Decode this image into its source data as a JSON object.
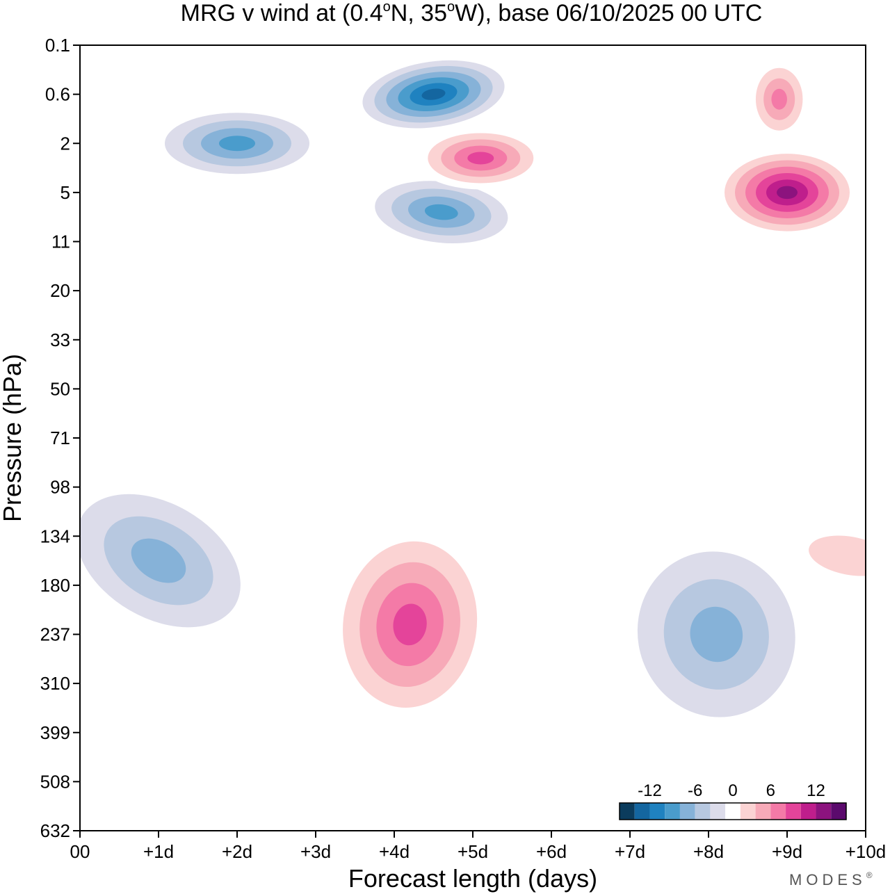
{
  "chart_data": {
    "type": "heatmap",
    "title": "MRG v wind at (0.4°N, 35°W),  base 06/10/2025  00 UTC",
    "title_parts": {
      "prefix": "MRG v wind at (0.4",
      "lat_unit": "o",
      "lat_suffix": "N, 35",
      "lon_unit": "o",
      "lon_suffix": "W),  base 06/10/2025  00 UTC"
    },
    "xlabel": "Forecast length (days)",
    "ylabel": "Pressure (hPa)",
    "xlim": [
      0,
      10
    ],
    "ylim_hPa": [
      0.1,
      632
    ],
    "x_ticks": [
      {
        "value": 0,
        "label": "00"
      },
      {
        "value": 1,
        "label": "+1d"
      },
      {
        "value": 2,
        "label": "+2d"
      },
      {
        "value": 3,
        "label": "+3d"
      },
      {
        "value": 4,
        "label": "+4d"
      },
      {
        "value": 5,
        "label": "+5d"
      },
      {
        "value": 6,
        "label": "+6d"
      },
      {
        "value": 7,
        "label": "+7d"
      },
      {
        "value": 8,
        "label": "+8d"
      },
      {
        "value": 9,
        "label": "+9d"
      },
      {
        "value": 10,
        "label": "+10d"
      }
    ],
    "y_ticks": [
      {
        "index": 0,
        "label": "0.1"
      },
      {
        "index": 1,
        "label": "0.6"
      },
      {
        "index": 2,
        "label": "2"
      },
      {
        "index": 3,
        "label": "5"
      },
      {
        "index": 4,
        "label": "11"
      },
      {
        "index": 5,
        "label": "20"
      },
      {
        "index": 6,
        "label": "33"
      },
      {
        "index": 7,
        "label": "50"
      },
      {
        "index": 8,
        "label": "71"
      },
      {
        "index": 9,
        "label": "98"
      },
      {
        "index": 10,
        "label": "134"
      },
      {
        "index": 11,
        "label": "180"
      },
      {
        "index": 12,
        "label": "237"
      },
      {
        "index": 13,
        "label": "310"
      },
      {
        "index": 14,
        "label": "399"
      },
      {
        "index": 15,
        "label": "508"
      },
      {
        "index": 16,
        "label": "632"
      }
    ],
    "colorbar": {
      "levels": [
        -16,
        -14,
        -12,
        -10,
        -8,
        -6,
        -4,
        -2,
        2,
        4,
        6,
        8,
        10,
        12,
        14,
        16
      ],
      "colors": [
        "#0b3c5d",
        "#1466a0",
        "#1f82c0",
        "#4a9ccc",
        "#86b2d8",
        "#b7c8e0",
        "#dcdcea",
        "#ffffff",
        "#fbd3d3",
        "#f7aab8",
        "#f47aa7",
        "#e4449a",
        "#bf1e8c",
        "#8c137e",
        "#5b0a6d"
      ],
      "labels": [
        {
          "value": -12,
          "label": "-12"
        },
        {
          "value": -6,
          "label": "-6"
        },
        {
          "value": 0,
          "label": "0"
        },
        {
          "value": 6,
          "label": "6"
        },
        {
          "value": 12,
          "label": "12"
        }
      ]
    },
    "features": [
      {
        "name": "neg-core-upper-mid",
        "day": 4.5,
        "level": 1.0,
        "value": -14
      },
      {
        "name": "neg-upper-left",
        "day": 2.0,
        "level": 2.0,
        "value": -10
      },
      {
        "name": "neg-mid-stratosphere",
        "day": 4.6,
        "level": 3.4,
        "value": -10
      },
      {
        "name": "pos-upper-5d",
        "day": 5.1,
        "level": 2.3,
        "value": 10
      },
      {
        "name": "pos-core-9d",
        "day": 9.0,
        "level": 3.0,
        "value": 14
      },
      {
        "name": "pos-upper-9d",
        "day": 8.9,
        "level": 1.1,
        "value": 8
      },
      {
        "name": "pos-troposphere-4d",
        "day": 4.2,
        "level": 11.8,
        "value": 10
      },
      {
        "name": "neg-lower-left",
        "day": 1.0,
        "level": 10.5,
        "value": -8
      },
      {
        "name": "neg-lower-8d",
        "day": 8.1,
        "level": 12.0,
        "value": -8
      },
      {
        "name": "pos-lower-right",
        "day": 9.8,
        "level": 10.4,
        "value": 4
      }
    ]
  },
  "branding": {
    "text": "MODES",
    "mark": "®"
  }
}
